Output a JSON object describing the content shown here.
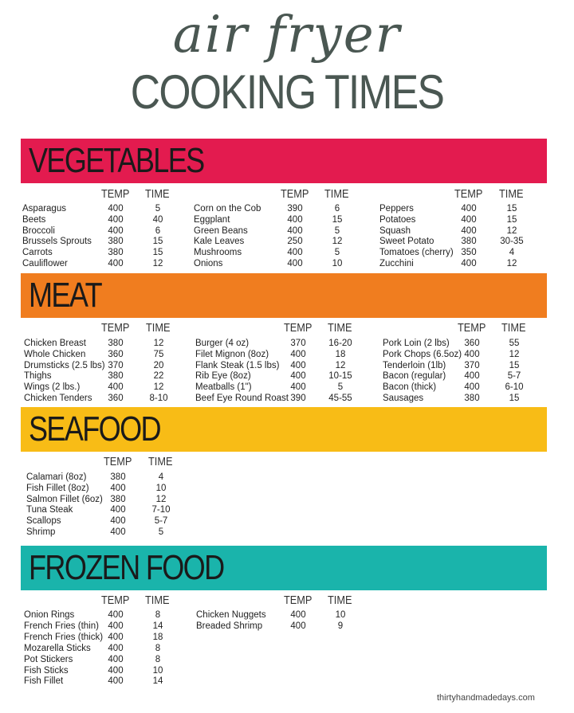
{
  "title": {
    "script": "air fryer",
    "main": "COOKING TIMES"
  },
  "colors": {
    "vegetables": "#e31b4f",
    "meat": "#f07d1f",
    "seafood": "#f8bc16",
    "frozen": "#1ab4ab"
  },
  "headers": {
    "temp": "TEMP",
    "time": "TIME"
  },
  "sections": {
    "vegetables": {
      "name": "VEGETABLES",
      "columns": [
        [
          [
            "Asparagus",
            "400",
            "5"
          ],
          [
            "Beets",
            "400",
            "40"
          ],
          [
            "Broccoli",
            "400",
            "6"
          ],
          [
            "Brussels Sprouts",
            "380",
            "15"
          ],
          [
            "Carrots",
            "380",
            "15"
          ],
          [
            "Cauliflower",
            "400",
            "12"
          ]
        ],
        [
          [
            "Corn on the Cob",
            "390",
            "6"
          ],
          [
            "Eggplant",
            "400",
            "15"
          ],
          [
            "Green Beans",
            "400",
            "5"
          ],
          [
            "Kale Leaves",
            "250",
            "12"
          ],
          [
            "Mushrooms",
            "400",
            "5"
          ],
          [
            "Onions",
            "400",
            "10"
          ]
        ],
        [
          [
            "Peppers",
            "400",
            "15"
          ],
          [
            "Potatoes",
            "400",
            "15"
          ],
          [
            "Squash",
            "400",
            "12"
          ],
          [
            "Sweet Potato",
            "380",
            "30-35"
          ],
          [
            "Tomatoes (cherry)",
            "350",
            "4"
          ],
          [
            "Zucchini",
            "400",
            "12"
          ]
        ]
      ]
    },
    "meat": {
      "name": "MEAT",
      "columns": [
        [
          [
            "Chicken Breast",
            "380",
            "12"
          ],
          [
            "Whole Chicken",
            "360",
            "75"
          ],
          [
            "Drumsticks (2.5 lbs)",
            "370",
            "20"
          ],
          [
            "Thighs",
            "380",
            "22"
          ],
          [
            "Wings (2 lbs.)",
            "400",
            "12"
          ],
          [
            "Chicken Tenders",
            "360",
            "8-10"
          ]
        ],
        [
          [
            "Burger (4 oz)",
            "370",
            "16-20"
          ],
          [
            "Filet Mignon (8oz)",
            "400",
            "18"
          ],
          [
            "Flank Steak (1.5 lbs)",
            "400",
            "12"
          ],
          [
            "Rib Eye (8oz)",
            "400",
            "10-15"
          ],
          [
            "Meatballs (1\")",
            "400",
            "5"
          ],
          [
            "Beef Eye Round Roast",
            "390",
            "45-55"
          ]
        ],
        [
          [
            "Pork Loin (2 lbs)",
            "360",
            "55"
          ],
          [
            "Pork Chops (6.5oz)",
            "400",
            "12"
          ],
          [
            "Tenderloin (1lb)",
            "370",
            "15"
          ],
          [
            "Bacon (regular)",
            "400",
            "5-7"
          ],
          [
            "Bacon (thick)",
            "400",
            "6-10"
          ],
          [
            "Sausages",
            "380",
            "15"
          ]
        ]
      ]
    },
    "seafood": {
      "name": "SEAFOOD",
      "columns": [
        [
          [
            "Calamari (8oz)",
            "380",
            "4"
          ],
          [
            "Fish Fillet (8oz)",
            "400",
            "10"
          ],
          [
            "Salmon Fillet (6oz)",
            "380",
            "12"
          ],
          [
            "Tuna Steak",
            "400",
            "7-10"
          ],
          [
            "Scallops",
            "400",
            "5-7"
          ],
          [
            "Shrimp",
            "400",
            "5"
          ]
        ]
      ]
    },
    "frozen": {
      "name": "FROZEN FOOD",
      "columns": [
        [
          [
            "Onion Rings",
            "400",
            "8"
          ],
          [
            "French Fries (thin)",
            "400",
            "14"
          ],
          [
            "French Fries (thick)",
            "400",
            "18"
          ],
          [
            "Mozarella Sticks",
            "400",
            "8"
          ],
          [
            "Pot Stickers",
            "400",
            "8"
          ],
          [
            "Fish Sticks",
            "400",
            "10"
          ],
          [
            "Fish Fillet",
            "400",
            "14"
          ]
        ],
        [
          [
            "Chicken Nuggets",
            "400",
            "10"
          ],
          [
            "Breaded Shrimp",
            "400",
            "9"
          ]
        ]
      ]
    }
  },
  "footer": "thirtyhandmadedays.com"
}
